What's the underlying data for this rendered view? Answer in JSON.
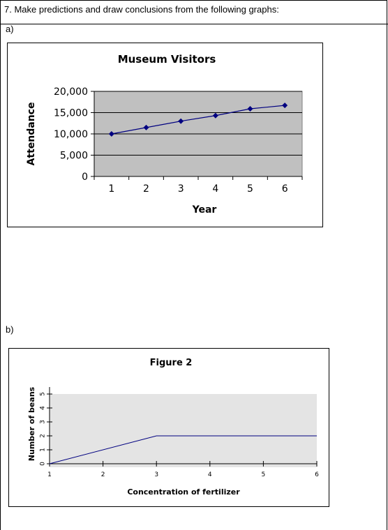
{
  "question": {
    "text": "7.  Make predictions and draw conclusions from the following graphs:"
  },
  "parts": {
    "a_label": "a)",
    "b_label": "b)"
  },
  "chart_data": [
    {
      "type": "line",
      "title": "Museum Visitors",
      "xlabel": "Year",
      "ylabel": "Attendance",
      "x": [
        1,
        2,
        3,
        4,
        5,
        6
      ],
      "y_ticks": [
        0,
        5000,
        10000,
        15000,
        20000
      ],
      "y_tick_labels": [
        "0",
        "5,000",
        "10,000",
        "15,000",
        "20,000"
      ],
      "ylim": [
        0,
        20000
      ],
      "grid": true,
      "series": [
        {
          "values": [
            10000,
            11500,
            13000,
            14300,
            15900,
            16700
          ],
          "color": "#000080",
          "marker": "diamond"
        }
      ],
      "plot_background": "#c0c0c0"
    },
    {
      "type": "line",
      "title": "Figure 2",
      "xlabel": "Concentration of fertilizer",
      "ylabel": "Number of beans",
      "x": [
        1,
        2,
        3,
        4,
        5,
        6
      ],
      "y_ticks": [
        0,
        1,
        2,
        3,
        4,
        5
      ],
      "y_tick_labels": [
        "0",
        "1",
        "2",
        "3",
        "4",
        "5"
      ],
      "ylim": [
        0,
        5
      ],
      "grid": false,
      "series": [
        {
          "x": [
            1,
            3,
            6
          ],
          "values": [
            0,
            2,
            2
          ],
          "color": "#000080"
        }
      ],
      "plot_background": "#e4e4e4"
    }
  ]
}
